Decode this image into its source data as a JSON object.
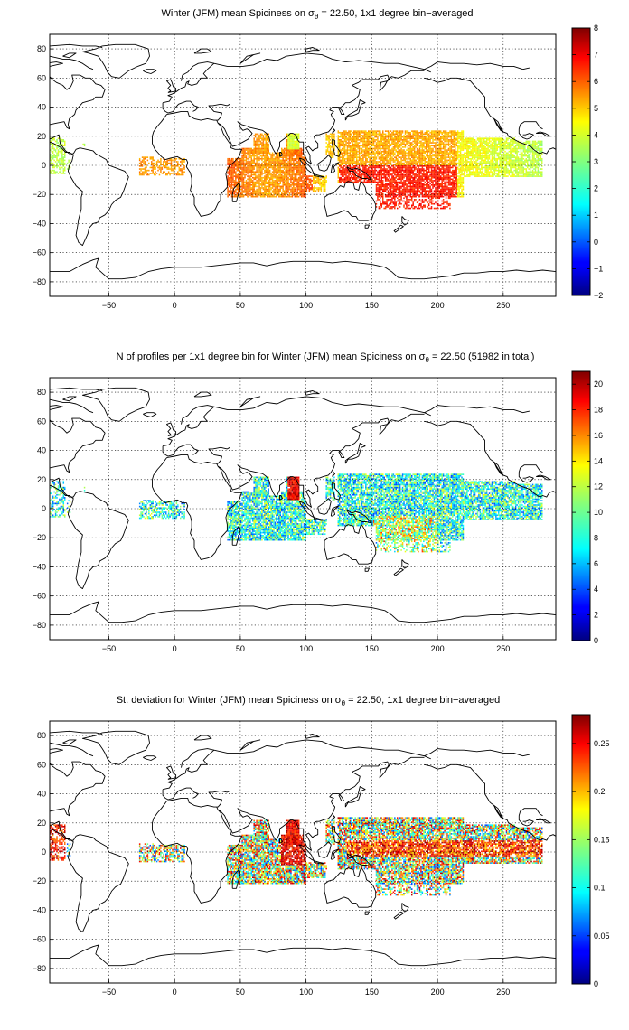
{
  "figure": {
    "panels": [
      {
        "id": "mean",
        "title_prefix": "Winter (JFM) mean Spiciness on ",
        "title_sigma": "σ",
        "title_sub": "θ",
        "title_suffix": " = 22.50, 1x1 degree bin−averaged",
        "colorbar": {
          "min": -2,
          "max": 8,
          "ticks": [
            "−2",
            "−1",
            "0",
            "1",
            "2",
            "3",
            "4",
            "5",
            "6",
            "7",
            "8"
          ]
        }
      },
      {
        "id": "count",
        "title_prefix": "N of profiles per 1x1 degree bin for Winter (JFM) mean Spiciness on ",
        "title_sigma": "σ",
        "title_sub": "θ",
        "title_suffix": " = 22.50 (51982 in total)",
        "colorbar": {
          "min": 0,
          "max": 21,
          "ticks": [
            "0",
            "2",
            "4",
            "6",
            "8",
            "10",
            "12",
            "14",
            "16",
            "18",
            "20"
          ]
        }
      },
      {
        "id": "std",
        "title_prefix": "St. deviation for Winter (JFM) mean Spiciness on ",
        "title_sigma": "σ",
        "title_sub": "θ",
        "title_suffix": " = 22.50, 1x1 degree bin−averaged",
        "colorbar": {
          "min": 0,
          "max": 0.28,
          "ticks": [
            "0",
            "0.05",
            "0.1",
            "0.15",
            "0.2",
            "0.25"
          ]
        }
      }
    ],
    "axes": {
      "x_ticks": [
        "−50",
        "0",
        "50",
        "100",
        "150",
        "200",
        "250"
      ],
      "y_ticks": [
        "80",
        "60",
        "40",
        "20",
        "0",
        "−20",
        "−40",
        "−60",
        "−80"
      ],
      "xlim": [
        -95,
        290
      ],
      "ylim": [
        -90,
        90
      ],
      "grid": "dotted"
    },
    "colormap": "jet",
    "colors": {
      "background": "#ffffff",
      "coastline": "#000000",
      "gridline": "#000000"
    }
  }
}
